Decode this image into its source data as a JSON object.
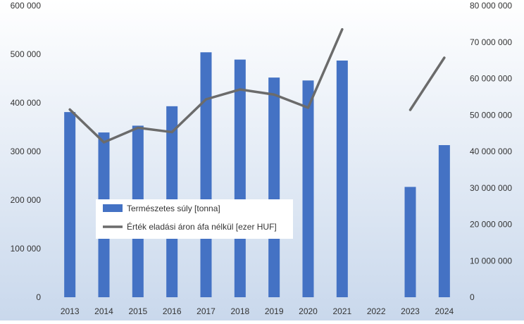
{
  "colors": {
    "bar": "#4472C4",
    "line": "#6B6B6B",
    "tick_text": "#333333",
    "legend_bg": "#FFFFFF",
    "background_top": "#FFFFFF",
    "background_bottom": "#C9D8EC"
  },
  "chart_data": {
    "type": "bar",
    "categories": [
      "2013",
      "2014",
      "2015",
      "2016",
      "2017",
      "2018",
      "2019",
      "2020",
      "2021",
      "2022",
      "2023",
      "2024"
    ],
    "series": [
      {
        "name": "Természetes súly [tonna]",
        "type": "bar",
        "axis": "left",
        "values": [
          381000,
          339000,
          353000,
          393000,
          504000,
          489000,
          452000,
          446000,
          487000,
          null,
          227000,
          313000
        ]
      },
      {
        "name": "Érték eladási áron áfa nélkül [ezer HUF]",
        "type": "line",
        "axis": "right",
        "values": [
          51500000,
          42500000,
          46500000,
          45300000,
          54300000,
          57000000,
          55600000,
          52000000,
          73500000,
          null,
          51400000,
          65700000
        ]
      }
    ],
    "y_left": {
      "ylim": [
        0,
        600000
      ],
      "ticks": [
        0,
        100000,
        200000,
        300000,
        400000,
        500000,
        600000
      ],
      "tick_labels": [
        "0",
        "100 000",
        "200 000",
        "300 000",
        "400 000",
        "500 000",
        "600 000"
      ]
    },
    "y_right": {
      "ylim": [
        0,
        80000000
      ],
      "ticks": [
        0,
        10000000,
        20000000,
        30000000,
        40000000,
        50000000,
        60000000,
        70000000,
        80000000
      ],
      "tick_labels": [
        "0",
        "10 000 000",
        "20 000 000",
        "30 000 000",
        "40 000 000",
        "50 000 000",
        "60 000 000",
        "70 000 000",
        "80 000 000"
      ]
    },
    "grid": false,
    "legend": {
      "placement": "center-left",
      "entries": [
        "Természetes súly [tonna]",
        "Érték eladási áron áfa nélkül [ezer HUF]"
      ]
    }
  }
}
